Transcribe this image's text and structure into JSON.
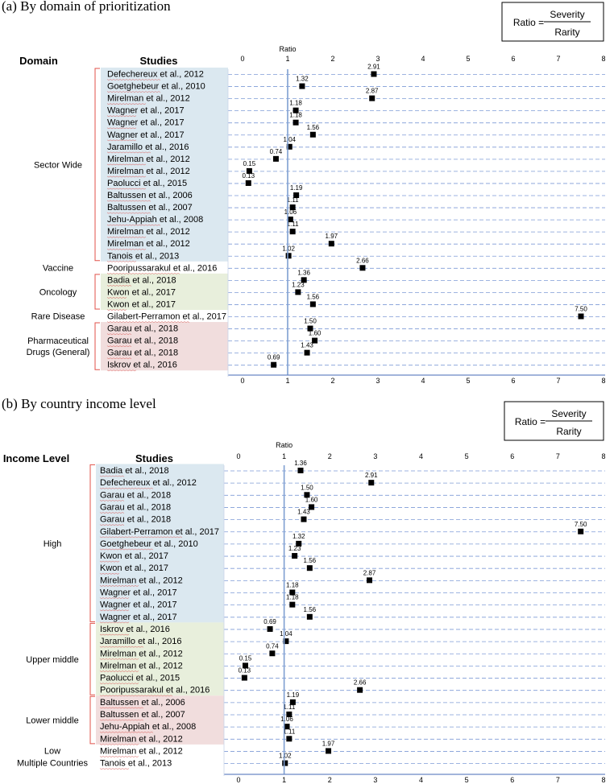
{
  "colors": {
    "blue_band": "#dbe8f0",
    "green_band": "#e8efdc",
    "pink_band": "#f1dddd",
    "bracket": "#e0524a",
    "grid": "#7f9bd6",
    "ref_line": "#7f9fd1",
    "axis": "#6a87c5",
    "squiggle": "#d9534f"
  },
  "chart_data": [
    {
      "type": "scatter",
      "panel_title": "(a) By domain of prioritization",
      "formula": {
        "lhs": "Ratio =",
        "numerator": "Severity",
        "denominator": "Rarity"
      },
      "group_header": "Domain",
      "studies_header": "Studies",
      "axis_title": "Ratio",
      "xlim": [
        0,
        8
      ],
      "ticks": [
        "0",
        "1",
        "2",
        "3",
        "4",
        "5",
        "6",
        "7",
        "8"
      ],
      "reference_value": 1,
      "groups": [
        {
          "label": [
            "Sector Wide"
          ],
          "band": "blue",
          "bracket": true,
          "rows": [
            {
              "study": "Defechereux et al., 2012",
              "value": 2.91,
              "label": "2.91"
            },
            {
              "study": "Goetghebeur et al., 2010",
              "value": 1.32,
              "label": "1.32"
            },
            {
              "study": "Mirelman et al., 2012",
              "value": 2.87,
              "label": "2.87"
            },
            {
              "study": "Wagner et al., 2017",
              "value": 1.18,
              "label": "1.18"
            },
            {
              "study": "Wagner et al., 2017",
              "value": 1.18,
              "label": "1.18"
            },
            {
              "study": "Wagner et al., 2017",
              "value": 1.56,
              "label": "1.56"
            },
            {
              "study": "Jaramillo et al., 2016",
              "value": 1.04,
              "label": "1.04"
            },
            {
              "study": "Mirelman et al., 2012",
              "value": 0.74,
              "label": "0.74"
            },
            {
              "study": "Mirelman et al., 2012",
              "value": 0.15,
              "label": "0.15"
            },
            {
              "study": "Paolucci et al., 2015",
              "value": 0.13,
              "label": "0.13"
            },
            {
              "study": "Baltussen et al., 2006",
              "value": 1.19,
              "label": "1.19"
            },
            {
              "study": "Baltussen et al., 2007",
              "value": 1.11,
              "label": "1.11"
            },
            {
              "study": "Jehu-Appiah et al., 2008",
              "value": 1.06,
              "label": "1.06"
            },
            {
              "study": "Mirelman et al., 2012",
              "value": 1.11,
              "label": "1.11"
            },
            {
              "study": "Mirelman et al., 2012",
              "value": 1.97,
              "label": "1.97"
            },
            {
              "study": "Tanois et al., 2013",
              "value": 1.02,
              "label": "1.02"
            }
          ]
        },
        {
          "label": [
            "Vaccine"
          ],
          "band": "none",
          "bracket": false,
          "rows": [
            {
              "study": "Pooripussarakul et al., 2016",
              "value": 2.66,
              "label": "2.66"
            }
          ]
        },
        {
          "label": [
            "Oncology"
          ],
          "band": "green",
          "bracket": true,
          "rows": [
            {
              "study": "Badia et al., 2018",
              "value": 1.36,
              "label": "1.36"
            },
            {
              "study": "Kwon et al., 2017",
              "value": 1.23,
              "label": "1.23"
            },
            {
              "study": "Kwon et al., 2017",
              "value": 1.56,
              "label": "1.56"
            }
          ]
        },
        {
          "label": [
            "Rare Disease"
          ],
          "band": "none",
          "bracket": false,
          "rows": [
            {
              "study": "Gilabert-Perramon et al., 2017",
              "value": 7.5,
              "label": "7.50"
            }
          ]
        },
        {
          "label": [
            "Pharmaceutical",
            "Drugs (General)"
          ],
          "band": "pink",
          "bracket": true,
          "rows": [
            {
              "study": "Garau et al., 2018",
              "value": 1.5,
              "label": "1.50"
            },
            {
              "study": "Garau et al., 2018",
              "value": 1.6,
              "label": "1.60"
            },
            {
              "study": "Garau et al., 2018",
              "value": 1.43,
              "label": "1.43"
            },
            {
              "study": "Iskrov et al., 2016",
              "value": 0.69,
              "label": "0.69"
            }
          ]
        }
      ]
    },
    {
      "type": "scatter",
      "panel_title": "(b) By country income level",
      "formula": {
        "lhs": "Ratio =",
        "numerator": "Severity",
        "denominator": "Rarity"
      },
      "group_header": "Income Level",
      "studies_header": "Studies",
      "axis_title": "Ratio",
      "xlim": [
        0,
        8
      ],
      "ticks": [
        "0",
        "1",
        "2",
        "3",
        "4",
        "5",
        "6",
        "7",
        "8"
      ],
      "reference_value": 1,
      "groups": [
        {
          "label": [
            "High"
          ],
          "band": "blue",
          "bracket": true,
          "rows": [
            {
              "study": "Badia et al., 2018",
              "value": 1.36,
              "label": "1.36"
            },
            {
              "study": "Defechereux et al., 2012",
              "value": 2.91,
              "label": "2.91"
            },
            {
              "study": "Garau et al., 2018",
              "value": 1.5,
              "label": "1.50"
            },
            {
              "study": "Garau et al., 2018",
              "value": 1.6,
              "label": "1.60"
            },
            {
              "study": "Garau et al., 2018",
              "value": 1.43,
              "label": "1.43"
            },
            {
              "study": "Gilabert-Perramon et al., 2017",
              "value": 7.5,
              "label": "7.50"
            },
            {
              "study": "Goetghebeur et al., 2010",
              "value": 1.32,
              "label": "1.32"
            },
            {
              "study": "Kwon et al., 2017",
              "value": 1.23,
              "label": "1.23"
            },
            {
              "study": "Kwon et al., 2017",
              "value": 1.56,
              "label": "1.56"
            },
            {
              "study": "Mirelman et al., 2012",
              "value": 2.87,
              "label": "2.87"
            },
            {
              "study": "Wagner et al., 2017",
              "value": 1.18,
              "label": "1.18"
            },
            {
              "study": "Wagner et al., 2017",
              "value": 1.18,
              "label": "1.18"
            },
            {
              "study": "Wagner et al., 2017",
              "value": 1.56,
              "label": "1.56"
            }
          ]
        },
        {
          "label": [
            "Upper middle"
          ],
          "band": "green",
          "bracket": true,
          "rows": [
            {
              "study": "Iskrov et al., 2016",
              "value": 0.69,
              "label": "0.69"
            },
            {
              "study": "Jaramillo et al., 2016",
              "value": 1.04,
              "label": "1.04"
            },
            {
              "study": "Mirelman et al., 2012",
              "value": 0.74,
              "label": "0.74"
            },
            {
              "study": "Mirelman et al., 2012",
              "value": 0.15,
              "label": "0.15"
            },
            {
              "study": "Paolucci et al., 2015",
              "value": 0.13,
              "label": "0.13"
            },
            {
              "study": "Pooripussarakul et al., 2016",
              "value": 2.66,
              "label": "2.66"
            }
          ]
        },
        {
          "label": [
            "Lower middle"
          ],
          "band": "pink",
          "bracket": true,
          "rows": [
            {
              "study": "Baltussen et al., 2006",
              "value": 1.19,
              "label": "1.19"
            },
            {
              "study": "Baltussen et al., 2007",
              "value": 1.11,
              "label": "1.11"
            },
            {
              "study": "Jehu-Appiah et al., 2008",
              "value": 1.06,
              "label": "1.06"
            },
            {
              "study": "Mirelman et al., 2012",
              "value": 1.11,
              "label": "1.11"
            }
          ]
        },
        {
          "label": [
            "Low"
          ],
          "band": "none",
          "bracket": false,
          "rows": [
            {
              "study": "Mirelman et al., 2012",
              "value": 1.97,
              "label": "1.97"
            }
          ]
        },
        {
          "label": [
            "Multiple Countries"
          ],
          "band": "none",
          "bracket": false,
          "rows": [
            {
              "study": "Tanois et al., 2013",
              "value": 1.02,
              "label": "1.02"
            }
          ]
        }
      ]
    }
  ]
}
